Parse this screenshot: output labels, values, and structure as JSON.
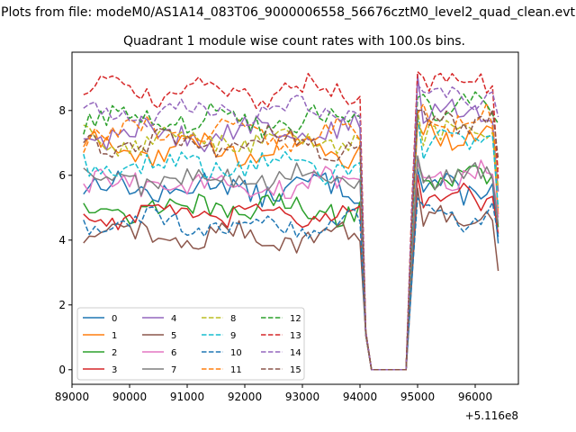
{
  "chart_data": {
    "type": "line",
    "suptitle": "Plots from file: modeM0/AS1A14_083T06_9000006558_56676cztM0_level2_quad_clean.evt",
    "title": "Quadrant 1 module wise count rates with 100.0s bins.",
    "xlabel": "",
    "ylabel": "",
    "x_offset_label": "+5.116e8",
    "xlim": [
      89000,
      96750
    ],
    "ylim": [
      -0.45,
      9.8
    ],
    "xticks": [
      89000,
      90000,
      91000,
      92000,
      93000,
      94000,
      95000,
      96000
    ],
    "xtick_labels": [
      "89000",
      "90000",
      "91000",
      "92000",
      "93000",
      "94000",
      "95000",
      "96000"
    ],
    "yticks": [
      0,
      2,
      4,
      6,
      8
    ],
    "ytick_labels": [
      "0",
      "2",
      "4",
      "6",
      "8"
    ],
    "legend_location": "lower-left",
    "x_segments": {
      "before_gap": {
        "start": 89200,
        "end": 94000,
        "step": 100
      },
      "drop": [
        94100,
        94200
      ],
      "zero": [
        94300,
        94400,
        94500,
        94600,
        94700,
        94800
      ],
      "rise": [
        94900,
        95000
      ],
      "after_gap": {
        "start": 95100,
        "end": 96400,
        "step": 100
      }
    },
    "series": [
      {
        "name": "0",
        "color": "#1f77b4",
        "dash": "solid",
        "level_before": 5.6,
        "level_after": 5.6,
        "noise": 0.35,
        "rise_value": 6.2,
        "end_value": 3.9
      },
      {
        "name": "1",
        "color": "#ff7f0e",
        "dash": "solid",
        "level_before": 6.8,
        "level_after": 7.2,
        "noise": 0.35,
        "rise_value": 7.6,
        "end_value": 4.8
      },
      {
        "name": "2",
        "color": "#2ca02c",
        "dash": "solid",
        "level_before": 5.0,
        "level_after": 5.9,
        "noise": 0.35,
        "rise_value": 6.4,
        "end_value": 4.4
      },
      {
        "name": "3",
        "color": "#d62728",
        "dash": "solid",
        "level_before": 4.8,
        "level_after": 5.3,
        "noise": 0.3,
        "rise_value": 6.0,
        "end_value": 4.2
      },
      {
        "name": "4",
        "color": "#9467bd",
        "dash": "solid",
        "level_before": 7.3,
        "level_after": 8.0,
        "noise": 0.35,
        "rise_value": 9.1,
        "end_value": 5.5
      },
      {
        "name": "5",
        "color": "#8c564b",
        "dash": "solid",
        "level_before": 4.1,
        "level_after": 4.6,
        "noise": 0.3,
        "rise_value": 5.6,
        "end_value": 3.05
      },
      {
        "name": "6",
        "color": "#e377c2",
        "dash": "solid",
        "level_before": 5.7,
        "level_after": 6.0,
        "noise": 0.35,
        "rise_value": 6.4,
        "end_value": 4.7
      },
      {
        "name": "7",
        "color": "#7f7f7f",
        "dash": "solid",
        "level_before": 5.9,
        "level_after": 6.0,
        "noise": 0.35,
        "rise_value": 6.6,
        "end_value": 4.5
      },
      {
        "name": "8",
        "color": "#bcbd22",
        "dash": "dashed",
        "level_before": 7.1,
        "level_after": 7.4,
        "noise": 0.35,
        "rise_value": 8.0,
        "end_value": 5.6
      },
      {
        "name": "9",
        "color": "#17becf",
        "dash": "dashed",
        "level_before": 6.3,
        "level_after": 7.0,
        "noise": 0.35,
        "rise_value": 7.8,
        "end_value": 5.0
      },
      {
        "name": "10",
        "color": "#1f77b4",
        "dash": "dashed",
        "level_before": 4.5,
        "level_after": 4.7,
        "noise": 0.3,
        "rise_value": 5.3,
        "end_value": 4.1
      },
      {
        "name": "11",
        "color": "#ff7f0e",
        "dash": "dashed",
        "level_before": 7.3,
        "level_after": 7.7,
        "noise": 0.35,
        "rise_value": 7.9,
        "end_value": 6.2
      },
      {
        "name": "12",
        "color": "#2ca02c",
        "dash": "dashed",
        "level_before": 7.7,
        "level_after": 8.2,
        "noise": 0.35,
        "rise_value": 8.4,
        "end_value": 7.6
      },
      {
        "name": "13",
        "color": "#d62728",
        "dash": "dashed",
        "level_before": 8.6,
        "level_after": 9.0,
        "noise": 0.3,
        "rise_value": 9.2,
        "end_value": 5.9
      },
      {
        "name": "14",
        "color": "#9467bd",
        "dash": "dashed",
        "level_before": 8.0,
        "level_after": 8.5,
        "noise": 0.3,
        "rise_value": 8.8,
        "end_value": 7.8
      },
      {
        "name": "15",
        "color": "#8c564b",
        "dash": "dashed",
        "level_before": 7.0,
        "level_after": 7.7,
        "noise": 0.35,
        "rise_value": 8.0,
        "end_value": 6.5
      }
    ]
  }
}
